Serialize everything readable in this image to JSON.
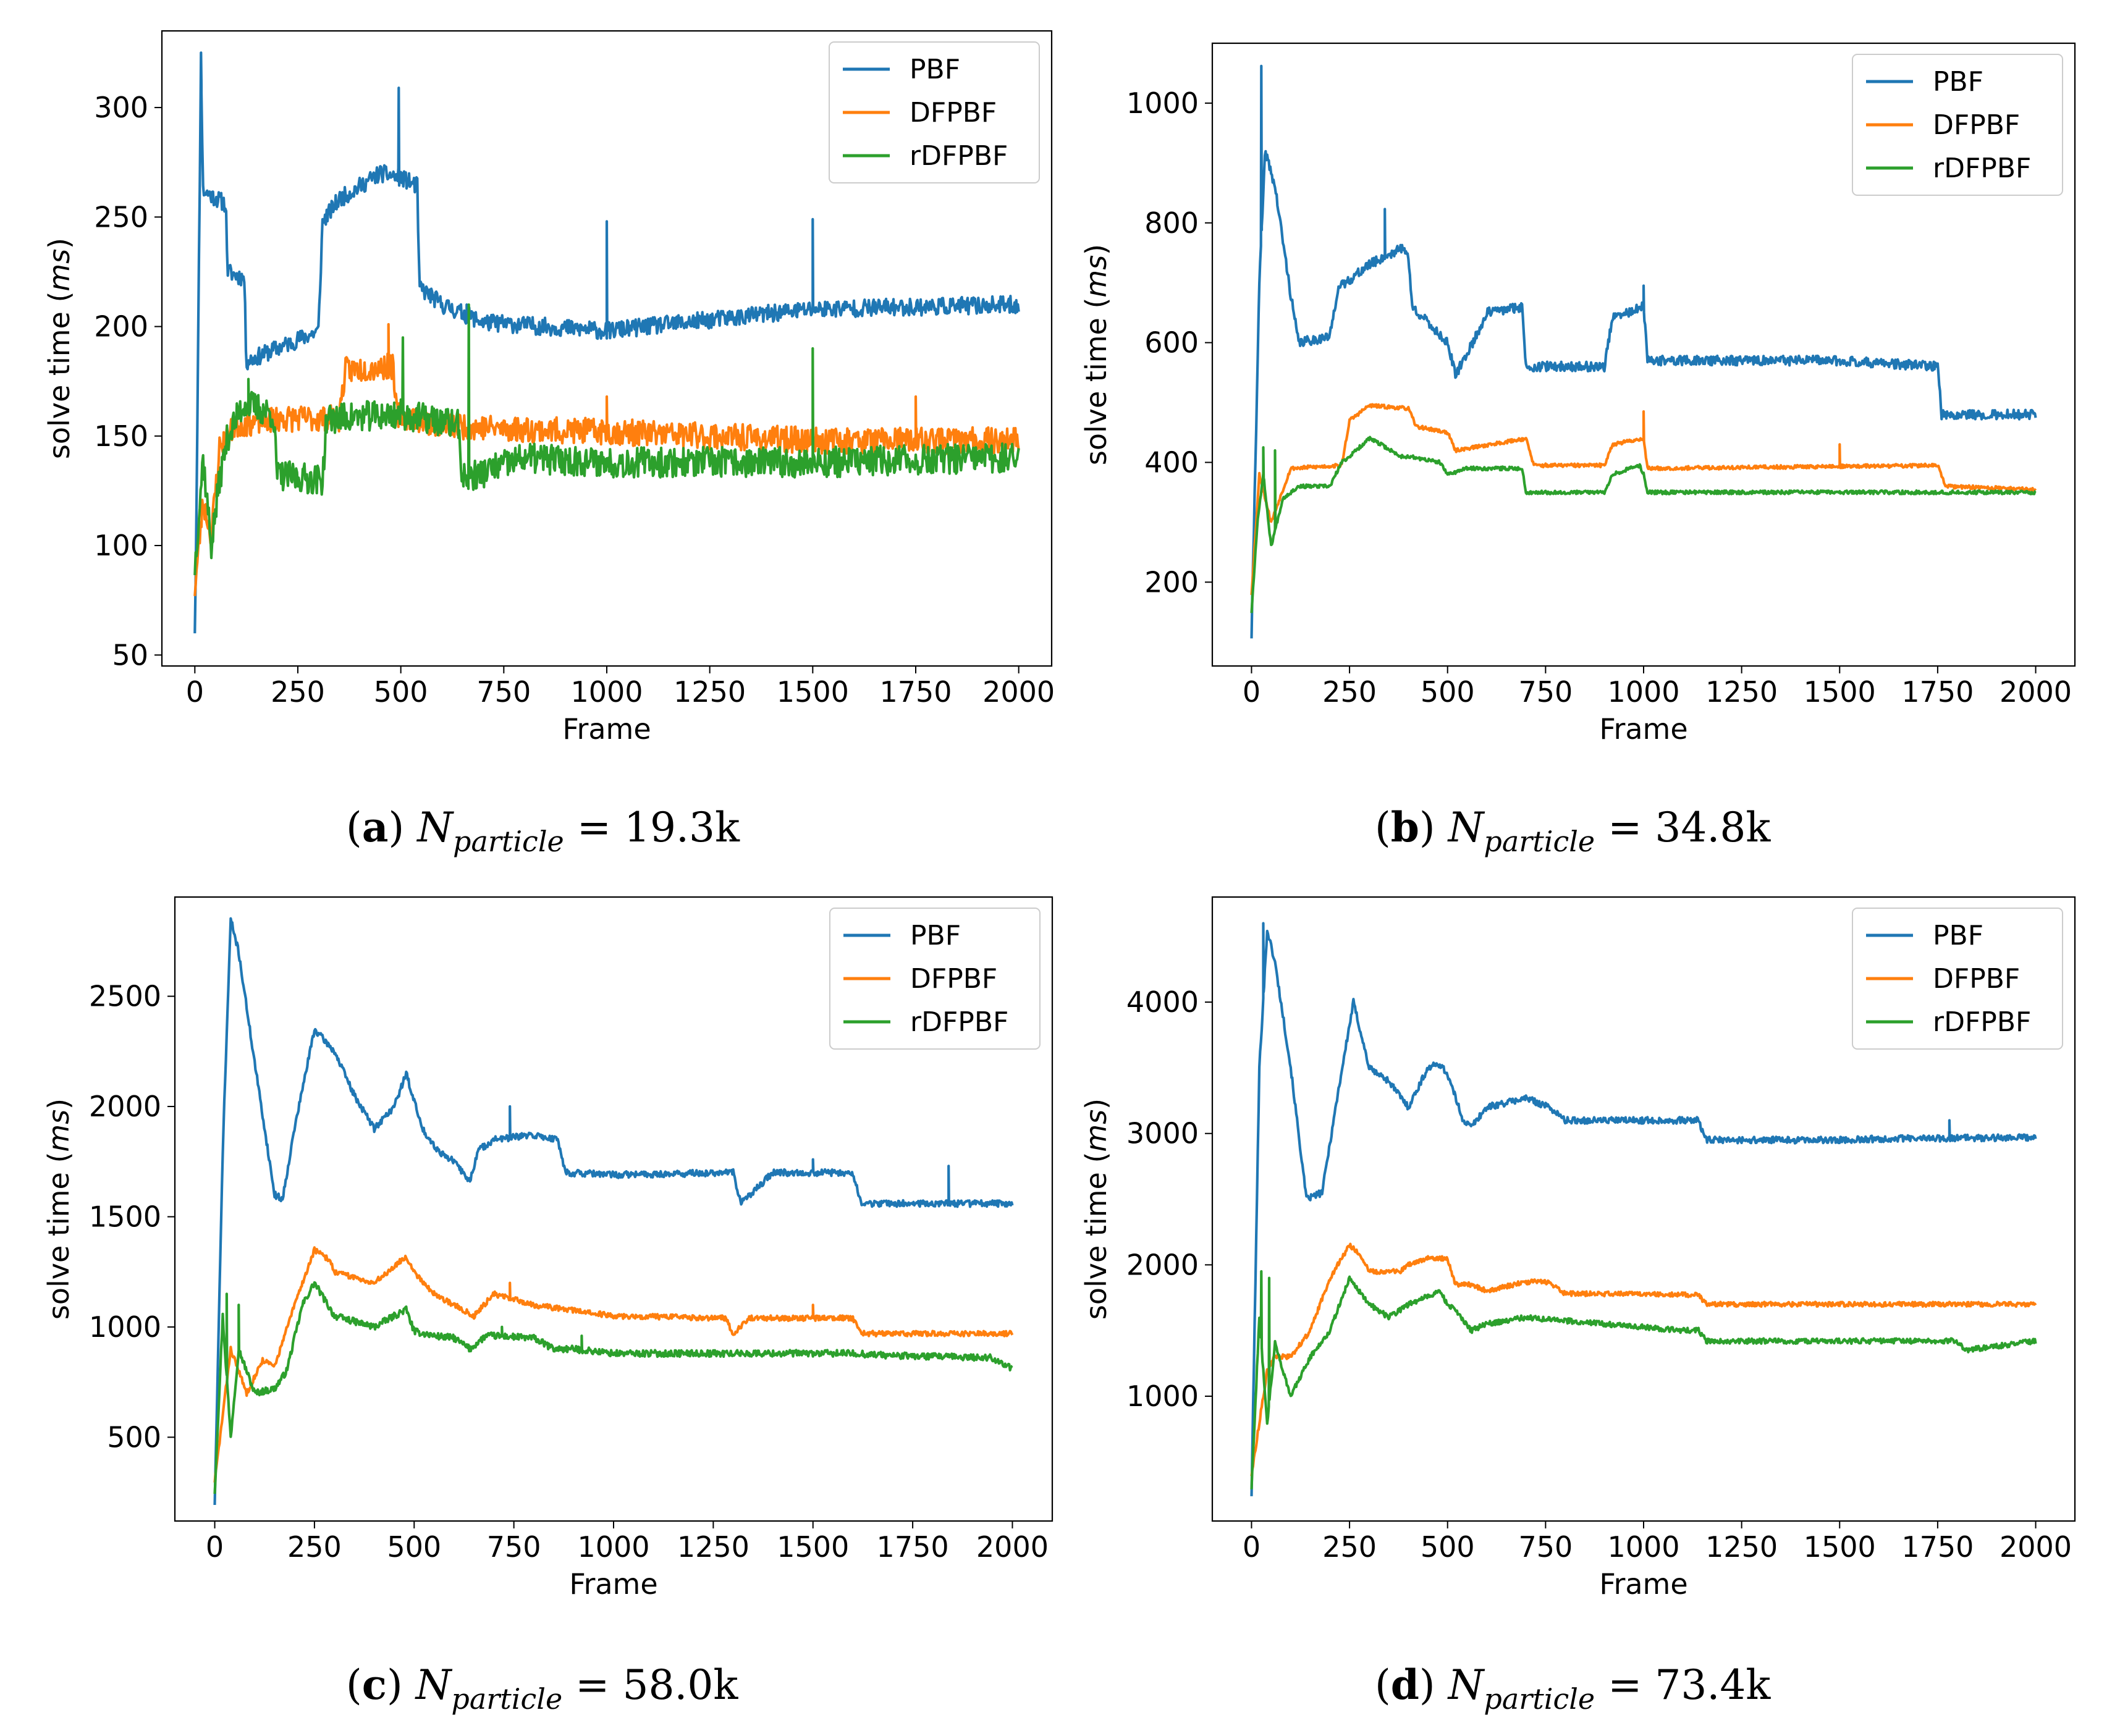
{
  "chart_data": [
    {
      "id": "a",
      "type": "line",
      "xlabel": "Frame",
      "ylabel": "solve time (",
      "ylabel_unit": "ms",
      "ylabel_close": ")",
      "xlim": [
        -80,
        2080
      ],
      "ylim": [
        45,
        335
      ],
      "xticks": [
        0,
        250,
        500,
        750,
        1000,
        1250,
        1500,
        1750,
        2000
      ],
      "yticks": [
        50,
        100,
        150,
        200,
        250,
        300
      ],
      "legend": "top-right",
      "caption": {
        "label": "(a)",
        "var": "N",
        "sub": "particle",
        "value": "= 19.3k"
      },
      "series": [
        {
          "name": "PBF",
          "color": "#1f77b4",
          "noise": 4,
          "seed": 11,
          "x": [
            0,
            3,
            15,
            20,
            75,
            80,
            120,
            125,
            300,
            310,
            350,
            450,
            500,
            540,
            545,
            600,
            700,
            1000,
            1500,
            2000
          ],
          "y": [
            62,
            100,
            322,
            262,
            256,
            225,
            222,
            184,
            198,
            248,
            258,
            270,
            268,
            264,
            218,
            210,
            202,
            198,
            208,
            210
          ],
          "spikes": [
            [
              15,
              325
            ],
            [
              495,
              309
            ],
            [
              1000,
              248
            ],
            [
              1500,
              249
            ],
            [
              660,
              210
            ]
          ]
        },
        {
          "name": "DFPBF",
          "color": "#ff7f0e",
          "noise": 6,
          "seed": 23,
          "x": [
            0,
            20,
            40,
            60,
            100,
            200,
            350,
            365,
            480,
            490,
            600,
            800,
            1000,
            1500,
            2000
          ],
          "y": [
            80,
            120,
            105,
            145,
            155,
            158,
            158,
            180,
            182,
            160,
            155,
            153,
            152,
            148,
            148
          ],
          "spikes": [
            [
              470,
              201
            ],
            [
              1000,
              168
            ],
            [
              1750,
              168
            ]
          ]
        },
        {
          "name": "rDFPBF",
          "color": "#2ca02c",
          "noise": 7,
          "seed": 37,
          "x": [
            0,
            20,
            40,
            60,
            80,
            120,
            190,
            200,
            310,
            320,
            500,
            640,
            650,
            800,
            1000,
            1500,
            2000
          ],
          "y": [
            90,
            140,
            100,
            130,
            150,
            165,
            160,
            132,
            130,
            158,
            160,
            155,
            130,
            140,
            138,
            138,
            140
          ],
          "spikes": [
            [
              130,
              176
            ],
            [
              505,
              195
            ],
            [
              665,
              210
            ],
            [
              1500,
              190
            ]
          ]
        }
      ]
    },
    {
      "id": "b",
      "type": "line",
      "xlabel": "Frame",
      "ylabel": "solve time (",
      "ylabel_unit": "ms",
      "ylabel_close": ")",
      "xlim": [
        -100,
        2100
      ],
      "ylim": [
        60,
        1100
      ],
      "xticks": [
        0,
        250,
        500,
        750,
        1000,
        1250,
        1500,
        1750,
        2000
      ],
      "yticks": [
        200,
        400,
        600,
        800,
        1000
      ],
      "legend": "top-right",
      "caption": {
        "label": "(b)",
        "var": "N",
        "sub": "particle",
        "value": "= 34.8k"
      },
      "series": [
        {
          "name": "PBF",
          "color": "#1f77b4",
          "noise": 8,
          "seed": 41,
          "x": [
            0,
            20,
            35,
            60,
            100,
            120,
            200,
            220,
            300,
            390,
            400,
            410,
            500,
            520,
            580,
            600,
            690,
            700,
            900,
            920,
            1000,
            1010,
            1500,
            1750,
            1760,
            2000
          ],
          "y": [
            110,
            700,
            920,
            860,
            680,
            600,
            610,
            690,
            730,
            760,
            740,
            660,
            600,
            545,
            620,
            650,
            660,
            560,
            560,
            640,
            660,
            570,
            570,
            560,
            480,
            480
          ],
          "spikes": [
            [
              25,
              1062
            ],
            [
              340,
              823
            ],
            [
              1000,
              695
            ]
          ]
        },
        {
          "name": "DFPBF",
          "color": "#ff7f0e",
          "noise": 3,
          "seed": 53,
          "x": [
            0,
            20,
            50,
            100,
            230,
            250,
            300,
            400,
            420,
            500,
            520,
            700,
            720,
            900,
            920,
            1000,
            1010,
            1750,
            1770,
            2000
          ],
          "y": [
            180,
            380,
            300,
            390,
            395,
            470,
            495,
            490,
            460,
            450,
            420,
            440,
            395,
            395,
            430,
            440,
            390,
            395,
            360,
            355
          ],
          "spikes": [
            [
              1000,
              485
            ],
            [
              1500,
              430
            ]
          ]
        },
        {
          "name": "rDFPBF",
          "color": "#2ca02c",
          "noise": 3,
          "seed": 67,
          "x": [
            0,
            15,
            30,
            50,
            80,
            120,
            200,
            230,
            250,
            300,
            330,
            380,
            400,
            480,
            500,
            550,
            690,
            700,
            900,
            920,
            990,
            1000,
            1010,
            2000
          ],
          "y": [
            150,
            300,
            380,
            260,
            340,
            360,
            360,
            400,
            410,
            440,
            430,
            410,
            410,
            400,
            380,
            390,
            390,
            350,
            350,
            380,
            395,
            380,
            350,
            350
          ],
          "spikes": [
            [
              30,
              425
            ],
            [
              60,
              420
            ]
          ]
        }
      ]
    },
    {
      "id": "c",
      "type": "line",
      "xlabel": "Frame",
      "ylabel": "solve time (",
      "ylabel_unit": "ms",
      "ylabel_close": ")",
      "xlim": [
        -100,
        2100
      ],
      "ylim": [
        120,
        2950
      ],
      "xticks": [
        0,
        250,
        500,
        750,
        1000,
        1250,
        1500,
        1750,
        2000
      ],
      "yticks": [
        500,
        1000,
        1500,
        2000,
        2500
      ],
      "legend": "top-right",
      "caption": {
        "label": "(c)",
        "var": "N",
        "sub": "particle",
        "value": "= 58.0k"
      },
      "series": [
        {
          "name": "PBF",
          "color": "#1f77b4",
          "noise": 15,
          "seed": 71,
          "x": [
            0,
            20,
            40,
            60,
            100,
            150,
            170,
            200,
            250,
            300,
            350,
            400,
            450,
            480,
            520,
            560,
            600,
            640,
            660,
            700,
            800,
            860,
            880,
            1000,
            1300,
            1320,
            1400,
            1600,
            1620,
            2000
          ],
          "y": [
            200,
            1800,
            2850,
            2700,
            2200,
            1600,
            1580,
            1900,
            2350,
            2250,
            2050,
            1900,
            2000,
            2150,
            1900,
            1800,
            1750,
            1660,
            1800,
            1850,
            1870,
            1850,
            1700,
            1690,
            1700,
            1560,
            1700,
            1700,
            1560,
            1560
          ],
          "spikes": [
            [
              1840,
              1730
            ],
            [
              1500,
              1760
            ],
            [
              740,
              2000
            ]
          ]
        },
        {
          "name": "DFPBF",
          "color": "#ff7f0e",
          "noise": 12,
          "seed": 83,
          "x": [
            0,
            40,
            80,
            120,
            150,
            200,
            250,
            290,
            300,
            400,
            480,
            500,
            550,
            600,
            650,
            700,
            800,
            1000,
            1280,
            1300,
            1340,
            1600,
            1620,
            2000
          ],
          "y": [
            300,
            900,
            700,
            850,
            820,
            1100,
            1350,
            1300,
            1250,
            1200,
            1320,
            1250,
            1150,
            1100,
            1050,
            1150,
            1100,
            1050,
            1040,
            970,
            1040,
            1040,
            970,
            970
          ],
          "spikes": [
            [
              740,
              1200
            ],
            [
              1500,
              1100
            ]
          ]
        },
        {
          "name": "rDFPBF",
          "color": "#2ca02c",
          "noise": 15,
          "seed": 97,
          "x": [
            0,
            20,
            40,
            60,
            100,
            150,
            180,
            220,
            250,
            300,
            400,
            480,
            500,
            550,
            600,
            640,
            680,
            700,
            800,
            850,
            900,
            1000,
            1600,
            1700,
            1950,
            2000
          ],
          "y": [
            250,
            1050,
            500,
            900,
            700,
            720,
            800,
            1100,
            1200,
            1050,
            1000,
            1080,
            980,
            960,
            950,
            900,
            960,
            960,
            950,
            900,
            900,
            880,
            880,
            870,
            860,
            810
          ],
          "spikes": [
            [
              30,
              1150
            ],
            [
              60,
              1100
            ],
            [
              720,
              1000
            ],
            [
              920,
              960
            ]
          ]
        }
      ]
    },
    {
      "id": "d",
      "type": "line",
      "xlabel": "Frame",
      "ylabel": "solve time (",
      "ylabel_unit": "ms",
      "ylabel_close": ")",
      "xlim": [
        -100,
        2100
      ],
      "ylim": [
        50,
        4800
      ],
      "xticks": [
        0,
        250,
        500,
        750,
        1000,
        1250,
        1500,
        1750,
        2000
      ],
      "yticks": [
        1000,
        2000,
        3000,
        4000
      ],
      "legend": "top-right",
      "caption": {
        "label": "(d)",
        "var": "N",
        "sub": "particle",
        "value": "= 73.4k"
      },
      "series": [
        {
          "name": "PBF",
          "color": "#1f77b4",
          "noise": 25,
          "seed": 101,
          "x": [
            0,
            20,
            40,
            60,
            100,
            140,
            180,
            220,
            260,
            300,
            350,
            400,
            450,
            480,
            500,
            540,
            560,
            600,
            700,
            760,
            800,
            1000,
            1140,
            1160,
            1500,
            1600,
            2000
          ],
          "y": [
            250,
            3500,
            4550,
            4300,
            3500,
            2500,
            2550,
            3300,
            4000,
            3500,
            3400,
            3200,
            3500,
            3530,
            3450,
            3100,
            3050,
            3200,
            3270,
            3200,
            3100,
            3100,
            3100,
            2950,
            2950,
            2960,
            2970
          ],
          "spikes": [
            [
              1780,
              3100
            ],
            [
              30,
              4600
            ]
          ]
        },
        {
          "name": "DFPBF",
          "color": "#ff7f0e",
          "noise": 18,
          "seed": 113,
          "x": [
            0,
            40,
            60,
            100,
            150,
            200,
            250,
            270,
            300,
            380,
            400,
            450,
            500,
            520,
            560,
            600,
            700,
            760,
            800,
            1000,
            1140,
            1160,
            2000
          ],
          "y": [
            400,
            1200,
            1300,
            1300,
            1500,
            1900,
            2150,
            2100,
            1950,
            1950,
            2000,
            2050,
            2050,
            1850,
            1850,
            1800,
            1870,
            1870,
            1780,
            1780,
            1770,
            1700,
            1700
          ]
        },
        {
          "name": "rDFPBF",
          "color": "#2ca02c",
          "noise": 20,
          "seed": 127,
          "x": [
            0,
            20,
            40,
            60,
            100,
            150,
            200,
            250,
            300,
            350,
            400,
            480,
            500,
            520,
            560,
            600,
            700,
            900,
            1100,
            1140,
            1160,
            1800,
            1820,
            2000
          ],
          "y": [
            300,
            1600,
            800,
            1400,
            1000,
            1300,
            1500,
            1900,
            1700,
            1600,
            1700,
            1800,
            1700,
            1650,
            1500,
            1550,
            1600,
            1550,
            1500,
            1500,
            1420,
            1420,
            1350,
            1420
          ],
          "spikes": [
            [
              25,
              1950
            ],
            [
              45,
              1900
            ]
          ]
        }
      ]
    }
  ]
}
